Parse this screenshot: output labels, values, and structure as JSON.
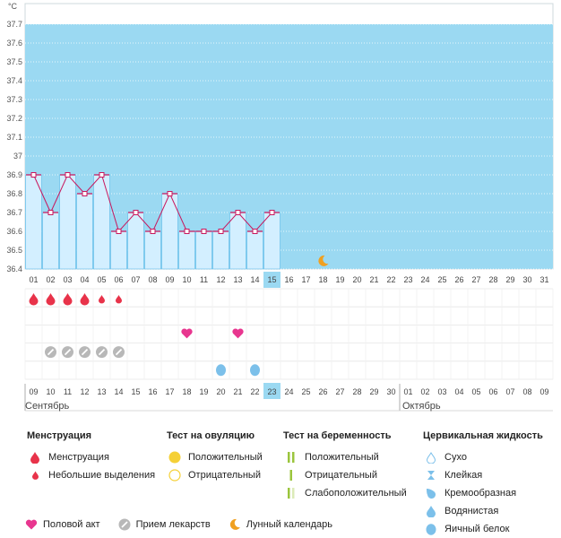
{
  "chart_data": {
    "type": "bar",
    "unit": "°C",
    "y_ticks": [
      "36.4",
      "36.5",
      "36.6",
      "36.7",
      "36.8",
      "36.9",
      "37",
      "37.1",
      "37.2",
      "37.3",
      "37.4",
      "37.5",
      "37.6",
      "37.7"
    ],
    "ylim": [
      36.4,
      37.7
    ],
    "cycle_days": [
      "01",
      "02",
      "03",
      "04",
      "05",
      "06",
      "07",
      "08",
      "09",
      "10",
      "11",
      "12",
      "13",
      "14",
      "15",
      "16",
      "17",
      "18",
      "19",
      "20",
      "21",
      "22",
      "23",
      "24",
      "25",
      "26",
      "27",
      "28",
      "29",
      "30",
      "31"
    ],
    "temperatures": [
      36.9,
      36.7,
      36.9,
      36.8,
      36.9,
      36.6,
      36.7,
      36.6,
      36.8,
      36.6,
      36.6,
      36.6,
      36.7,
      36.6,
      36.7
    ],
    "current_day_index": 14,
    "lunar_day_index": 17,
    "dates": [
      "09",
      "10",
      "11",
      "12",
      "13",
      "14",
      "15",
      "16",
      "17",
      "18",
      "19",
      "20",
      "21",
      "22",
      "23",
      "24",
      "25",
      "26",
      "27",
      "28",
      "29",
      "30",
      "01",
      "02",
      "03",
      "04",
      "05",
      "06",
      "07",
      "08",
      "09"
    ],
    "weekend_dates": [
      false,
      true,
      true,
      true,
      false,
      false,
      false,
      false,
      false,
      true,
      true,
      false,
      false,
      false,
      false,
      false,
      true,
      true,
      false,
      false,
      false,
      false,
      false,
      true,
      true,
      false,
      false,
      false,
      false,
      false,
      true
    ],
    "month_labels": [
      {
        "label": "Сентябрь",
        "start_index": 0
      },
      {
        "label": "Октябрь",
        "start_index": 22
      }
    ],
    "menstruation": [
      2,
      2,
      2,
      2,
      1,
      1
    ],
    "intercourse_days": [
      9,
      12
    ],
    "medication_days": [
      1,
      2,
      3,
      4,
      5
    ],
    "cervical_days": [
      {
        "day": 11,
        "type": "egg-white"
      },
      {
        "day": 13,
        "type": "egg-white"
      }
    ]
  },
  "legend": {
    "menstruation": {
      "title": "Менструация",
      "heavy": "Менструация",
      "light": "Небольшие выделения"
    },
    "ovulation": {
      "title": "Тест на овуляцию",
      "positive": "Положительный",
      "negative": "Отрицательный"
    },
    "pregnancy": {
      "title": "Тест на беременность",
      "positive": "Положительный",
      "negative": "Отрицательный",
      "weak": "Слабоположительный"
    },
    "cervical": {
      "title": "Цервикальная жидкость",
      "dry": "Сухо",
      "sticky": "Клейкая",
      "creamy": "Кремообразная",
      "watery": "Водянистая",
      "eggwhite": "Яичный белок"
    },
    "bottom": {
      "intercourse": "Половой акт",
      "medication": "Прием лекарств",
      "lunar": "Лунный календарь"
    }
  },
  "colors": {
    "chart_bg": "#9bd9f2",
    "bar_fill": "#d3efff",
    "bar_stroke": "#5bb8e6",
    "line": "#c8175d",
    "blood": "#e8334a",
    "heart": "#e8368f",
    "pill": "#b8b8b8",
    "drop_blue": "#7cc0ea",
    "moon": "#f0a020",
    "ovu_pos": "#f5d036",
    "ovu_neg": "#f5d036",
    "preg_green": "#9bc53d",
    "current_day": "#9bd9f2",
    "weekend": "#c8175d"
  }
}
